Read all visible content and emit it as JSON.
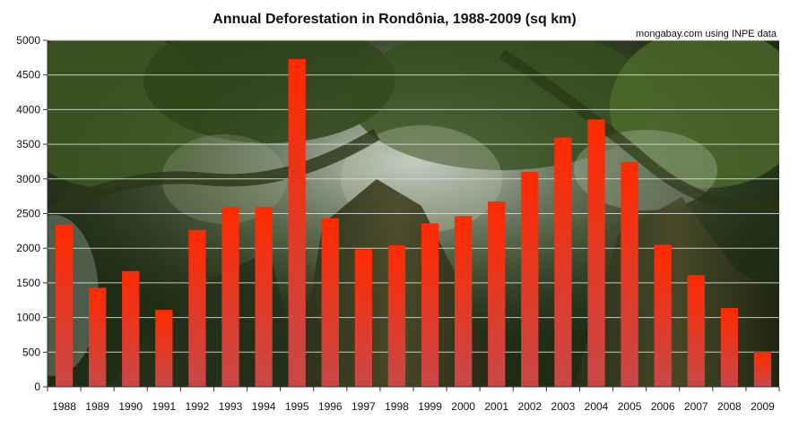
{
  "chart_data": {
    "type": "bar",
    "title": "Annual Deforestation in Rondônia, 1988-2009 (sq km)",
    "source": "mongabay.com using INPE data",
    "xlabel": "",
    "ylabel": "",
    "ylim": [
      0,
      5000
    ],
    "yticks": [
      0,
      500,
      1000,
      1500,
      2000,
      2500,
      3000,
      3500,
      4000,
      4500,
      5000
    ],
    "grid": true,
    "legend": "none",
    "categories": [
      "1988",
      "1989",
      "1990",
      "1991",
      "1992",
      "1993",
      "1994",
      "1995",
      "1996",
      "1997",
      "1998",
      "1999",
      "2000",
      "2001",
      "2002",
      "2003",
      "2004",
      "2005",
      "2006",
      "2007",
      "2008",
      "2009"
    ],
    "values": [
      2340,
      1430,
      1670,
      1110,
      2265,
      2595,
      2595,
      4730,
      2432,
      1986,
      2041,
      2358,
      2465,
      2673,
      3099,
      3597,
      3858,
      3244,
      2049,
      1611,
      1136,
      505
    ],
    "colors": {
      "bar_top": "#ff2a00",
      "bar_bottom": "#c84848",
      "background_dark": "#1d2a14",
      "foliage": "#4d6a2e",
      "grid": "#d8d8d8",
      "text": "#111111"
    }
  }
}
